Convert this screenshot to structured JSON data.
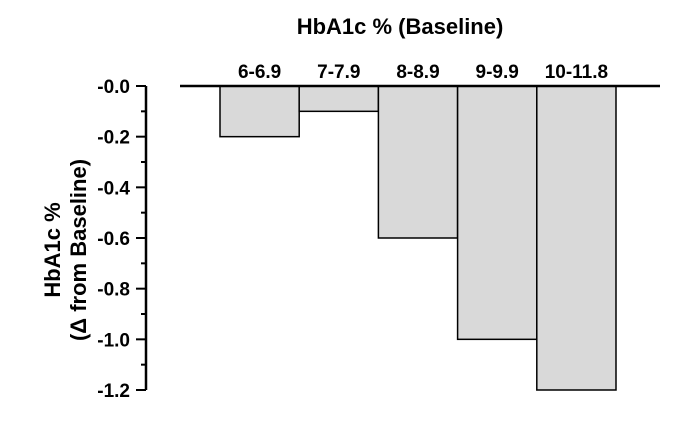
{
  "chart_data": {
    "type": "bar",
    "title": "HbA1c % (Baseline)",
    "ylabel_line1": "HbA1c %",
    "ylabel_line2": "(Δ from Baseline)",
    "categories": [
      "6-6.9",
      "7-7.9",
      "8-8.9",
      "9-9.9",
      "10-11.8"
    ],
    "values": [
      -0.2,
      -0.1,
      -0.6,
      -1.0,
      -1.2
    ],
    "ylim": [
      -1.2,
      0.0
    ],
    "ytick_labels": [
      "-0.0",
      "-0.2",
      "-0.4",
      "-0.6",
      "-0.8",
      "-1.0",
      "-1.2"
    ],
    "ytick_values": [
      0.0,
      -0.2,
      -0.4,
      -0.6,
      -0.8,
      -1.0,
      -1.2
    ],
    "bar_color": "#d9d9d9",
    "grid": false,
    "legend": "none"
  }
}
